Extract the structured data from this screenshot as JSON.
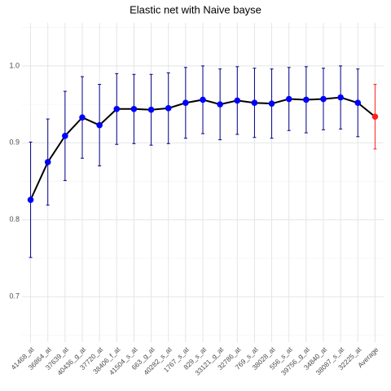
{
  "chart_data": {
    "type": "line",
    "title": "Elastic net with Naive bayse",
    "categories": [
      "41468_at",
      "36864_at",
      "37639_at",
      "40436_g_at",
      "37720_at",
      "38406_f_at",
      "41504_s_at",
      "663_g_at",
      "40282_s_at",
      "1767_s_at",
      "829_s_at",
      "33121_g_at",
      "32786_at",
      "769_s_at",
      "38028_at",
      "556_s_at",
      "39756_g_at",
      "34840_at",
      "38087_s_at",
      "32225_at",
      "Average"
    ],
    "series": [
      {
        "values": [
          0.826,
          0.875,
          0.909,
          0.933,
          0.923,
          0.944,
          0.944,
          0.943,
          0.945,
          0.952,
          0.956,
          0.95,
          0.955,
          0.952,
          0.951,
          0.957,
          0.956,
          0.957,
          0.959,
          0.952,
          0.934
        ],
        "errors": [
          0.075,
          0.056,
          0.058,
          0.053,
          0.053,
          0.046,
          0.045,
          0.046,
          0.046,
          0.046,
          0.044,
          0.046,
          0.044,
          0.045,
          0.045,
          0.041,
          0.043,
          0.04,
          0.041,
          0.044,
          0.042
        ],
        "point_colors": [
          "#0000ff",
          "#0000ff",
          "#0000ff",
          "#0000ff",
          "#0000ff",
          "#0000ff",
          "#0000ff",
          "#0000ff",
          "#0000ff",
          "#0000ff",
          "#0000ff",
          "#0000ff",
          "#0000ff",
          "#0000ff",
          "#0000ff",
          "#0000ff",
          "#0000ff",
          "#0000ff",
          "#0000ff",
          "#0000ff",
          "#ff2020"
        ],
        "errorbar_colors": [
          "#00008b",
          "#00008b",
          "#00008b",
          "#00008b",
          "#00008b",
          "#00008b",
          "#00008b",
          "#00008b",
          "#00008b",
          "#00008b",
          "#00008b",
          "#00008b",
          "#00008b",
          "#00008b",
          "#00008b",
          "#00008b",
          "#00008b",
          "#00008b",
          "#00008b",
          "#00008b",
          "#ff2020"
        ],
        "color": "#000000"
      }
    ],
    "ylim": [
      0.641,
      1.056
    ],
    "yticks": [
      0.7,
      0.8,
      0.9,
      {
        "value": 1.0,
        "label": "1.0"
      }
    ],
    "minor_yticks": [
      0.65,
      0.75,
      0.85,
      0.95,
      1.05
    ],
    "grid": true
  }
}
